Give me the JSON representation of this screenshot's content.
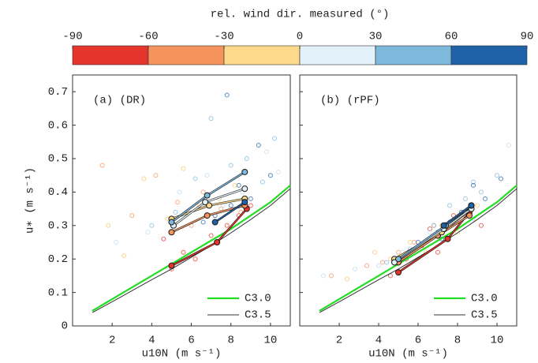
{
  "colorbar": {
    "label": "rel. wind dir. measured (°)",
    "ticks": [
      -90,
      -60,
      -30,
      0,
      30,
      60,
      90
    ],
    "colors": [
      "#e4342b",
      "#f4935c",
      "#fcd98b",
      "#e3f1f8",
      "#7db9da",
      "#1f62a8"
    ]
  },
  "chart_data": [
    {
      "type": "scatter",
      "panel_label": "(a)  (DR)",
      "xlabel": "u10N (m s⁻¹)",
      "ylabel": "u∗ (m s⁻¹)",
      "show_ytick_labels": true,
      "xlim": [
        0,
        11
      ],
      "xticks": [
        2,
        4,
        6,
        8,
        10
      ],
      "ylim": [
        0,
        0.75
      ],
      "yticks": [
        0,
        0.1,
        0.2,
        0.3,
        0.4,
        0.5,
        0.6,
        0.7
      ],
      "scatter_series": [
        {
          "color": "#e4342b",
          "x": [
            5.0,
            5.6,
            6.2,
            7.0,
            7.8,
            8.4,
            9.0,
            4.6
          ],
          "values": [
            0.17,
            0.22,
            0.2,
            0.27,
            0.3,
            0.33,
            0.36,
            0.26
          ]
        },
        {
          "color": "#f4935c",
          "x": [
            1.5,
            3.0,
            4.2,
            5.3,
            6.0,
            6.6,
            7.5,
            8.5
          ],
          "values": [
            0.48,
            0.33,
            0.45,
            0.37,
            0.3,
            0.4,
            0.35,
            0.34
          ]
        },
        {
          "color": "#f7c66a",
          "x": [
            1.8,
            3.6,
            4.8,
            5.6,
            6.4,
            7.4,
            8.2,
            2.6
          ],
          "values": [
            0.3,
            0.44,
            0.32,
            0.47,
            0.36,
            0.38,
            0.42,
            0.21
          ]
        },
        {
          "color": "#bcdcee",
          "x": [
            2.2,
            3.8,
            5.4,
            6.8,
            7.6,
            8.6,
            9.8,
            10.4
          ],
          "values": [
            0.25,
            0.28,
            0.4,
            0.45,
            0.36,
            0.4,
            0.52,
            0.46
          ]
        },
        {
          "color": "#7db9da",
          "x": [
            4.0,
            5.2,
            6.2,
            7.0,
            8.0,
            8.8,
            9.6,
            10.2
          ],
          "values": [
            0.3,
            0.34,
            0.44,
            0.62,
            0.48,
            0.5,
            0.43,
            0.56
          ]
        },
        {
          "color": "#1f62a8",
          "x": [
            6.6,
            7.2,
            7.8,
            8.4,
            9.0,
            9.4,
            8.0,
            10.0
          ],
          "values": [
            0.31,
            0.33,
            0.69,
            0.42,
            0.38,
            0.54,
            0.36,
            0.45
          ]
        }
      ],
      "mean_series": [
        {
          "color": "#e4342b",
          "x": [
            5.0,
            7.3,
            8.8
          ],
          "values": [
            0.18,
            0.25,
            0.35
          ]
        },
        {
          "color": "#f4935c",
          "x": [
            5.0,
            6.8,
            8.7
          ],
          "values": [
            0.28,
            0.33,
            0.36
          ]
        },
        {
          "color": "#fcd98b",
          "x": [
            5.0,
            6.9,
            8.7
          ],
          "values": [
            0.32,
            0.36,
            0.38
          ]
        },
        {
          "color": "#e3f1f8",
          "x": [
            5.1,
            6.7,
            8.7
          ],
          "values": [
            0.3,
            0.37,
            0.41
          ]
        },
        {
          "color": "#7db9da",
          "x": [
            5.0,
            6.8,
            8.7
          ],
          "values": [
            0.31,
            0.39,
            0.46
          ]
        },
        {
          "color": "#1f62a8",
          "x": [
            7.2,
            8.7
          ],
          "values": [
            0.31,
            0.37
          ]
        }
      ],
      "series": [
        {
          "name": "C3.0",
          "color": "#22dd22",
          "x": [
            1,
            2,
            3,
            4,
            5,
            6,
            7,
            8,
            9,
            10,
            11
          ],
          "values": [
            0.045,
            0.08,
            0.115,
            0.15,
            0.185,
            0.22,
            0.255,
            0.29,
            0.33,
            0.37,
            0.42
          ]
        },
        {
          "name": "C3.5",
          "color": "#333333",
          "x": [
            1,
            2,
            3,
            4,
            5,
            6,
            7,
            8,
            9,
            10,
            11
          ],
          "values": [
            0.04,
            0.072,
            0.105,
            0.138,
            0.17,
            0.205,
            0.24,
            0.278,
            0.318,
            0.36,
            0.41
          ]
        }
      ],
      "legend": "lower right"
    },
    {
      "type": "scatter",
      "panel_label": "(b)  (rPF)",
      "xlabel": "u10N (m s⁻¹)",
      "show_ytick_labels": false,
      "xlim": [
        0,
        11
      ],
      "xticks": [
        2,
        4,
        6,
        8,
        10
      ],
      "ylim": [
        0,
        0.75
      ],
      "yticks": [
        0,
        0.1,
        0.2,
        0.3,
        0.4,
        0.5,
        0.6,
        0.7
      ],
      "scatter_series": [
        {
          "color": "#e4342b",
          "x": [
            4.6,
            5.4,
            6.2,
            7.0,
            7.8,
            8.6,
            9.2,
            6.6
          ],
          "values": [
            0.15,
            0.2,
            0.24,
            0.22,
            0.33,
            0.34,
            0.3,
            0.29
          ]
        },
        {
          "color": "#f4935c",
          "x": [
            1.6,
            4.2,
            5.0,
            5.8,
            6.8,
            7.6,
            8.4,
            3.4
          ],
          "values": [
            0.15,
            0.19,
            0.22,
            0.25,
            0.3,
            0.27,
            0.33,
            0.18
          ]
        },
        {
          "color": "#f7c66a",
          "x": [
            2.4,
            3.8,
            4.6,
            5.6,
            6.4,
            7.2,
            8.0,
            9.0
          ],
          "values": [
            0.14,
            0.22,
            0.2,
            0.25,
            0.22,
            0.3,
            0.28,
            0.36
          ]
        },
        {
          "color": "#bcdcee",
          "x": [
            1.2,
            2.8,
            4.0,
            5.2,
            6.6,
            7.4,
            8.8,
            10.6
          ],
          "values": [
            0.15,
            0.17,
            0.18,
            0.22,
            0.28,
            0.26,
            0.32,
            0.54
          ]
        },
        {
          "color": "#7db9da",
          "x": [
            4.4,
            5.6,
            6.8,
            7.6,
            8.4,
            9.2,
            10.0,
            8.8
          ],
          "values": [
            0.19,
            0.23,
            0.3,
            0.36,
            0.38,
            0.4,
            0.45,
            0.43
          ]
        },
        {
          "color": "#1f62a8",
          "x": [
            6.0,
            7.0,
            7.6,
            8.2,
            8.8,
            9.4,
            10.2,
            7.2
          ],
          "values": [
            0.25,
            0.28,
            0.31,
            0.34,
            0.42,
            0.38,
            0.44,
            0.26
          ]
        }
      ],
      "mean_series": [
        {
          "color": "#e4342b",
          "x": [
            5.0,
            7.5,
            8.6
          ],
          "values": [
            0.16,
            0.26,
            0.34
          ]
        },
        {
          "color": "#f4935c",
          "x": [
            5.0,
            7.0,
            8.6
          ],
          "values": [
            0.19,
            0.27,
            0.33
          ]
        },
        {
          "color": "#fcd98b",
          "x": [
            4.8,
            7.2,
            8.7
          ],
          "values": [
            0.2,
            0.28,
            0.35
          ]
        },
        {
          "color": "#e3f1f8",
          "x": [
            4.8,
            7.3,
            8.7
          ],
          "values": [
            0.19,
            0.29,
            0.35
          ]
        },
        {
          "color": "#7db9da",
          "x": [
            5.0,
            7.4,
            8.7
          ],
          "values": [
            0.2,
            0.3,
            0.36
          ]
        },
        {
          "color": "#1f62a8",
          "x": [
            7.3,
            8.7
          ],
          "values": [
            0.3,
            0.36
          ]
        }
      ],
      "series": [
        {
          "name": "C3.0",
          "color": "#22dd22",
          "x": [
            1,
            2,
            3,
            4,
            5,
            6,
            7,
            8,
            9,
            10,
            11
          ],
          "values": [
            0.045,
            0.08,
            0.115,
            0.15,
            0.185,
            0.22,
            0.255,
            0.29,
            0.33,
            0.37,
            0.42
          ]
        },
        {
          "name": "C3.5",
          "color": "#333333",
          "x": [
            1,
            2,
            3,
            4,
            5,
            6,
            7,
            8,
            9,
            10,
            11
          ],
          "values": [
            0.04,
            0.072,
            0.105,
            0.138,
            0.17,
            0.205,
            0.24,
            0.278,
            0.318,
            0.36,
            0.41
          ]
        }
      ],
      "legend": "lower right"
    }
  ]
}
